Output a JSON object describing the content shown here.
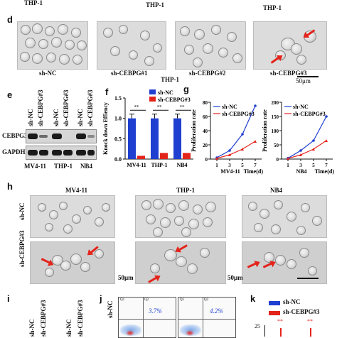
{
  "top_labels": {
    "thp1_left": "THP-1",
    "thp1_center": "THP-1",
    "thp1_right": "THP-1"
  },
  "panel_d": {
    "letter": "d",
    "captions": [
      "sh-NC",
      "sh-CEBPG#1",
      "sh-CEBPG#2",
      "sh-CEBPG#3"
    ],
    "group_label": "THP-1",
    "scale": "50μm"
  },
  "panel_e": {
    "letter": "e",
    "lane_labels": [
      "sh-NC",
      "sh-CEBPG#3",
      "sh-NC",
      "sh-CEBPG#3",
      "sh-NC",
      "sh-CEBPG#3"
    ],
    "row_labels": [
      "CEBPG3",
      "GAPDH"
    ],
    "cell_lines": [
      "MV4-11",
      "THP-1",
      "NB4"
    ]
  },
  "panel_f": {
    "letter": "f"
  },
  "panel_g": {
    "letter": "g"
  },
  "panel_h": {
    "letter": "h",
    "col_titles": [
      "MV4-11",
      "THP-1",
      "NB4"
    ],
    "row_labels": [
      "sh-NC",
      "sh-CEBPG#3"
    ],
    "scale": "50μm"
  },
  "panel_i": {
    "letter": "i",
    "labels": [
      "sh-NC",
      "sh-CEBPG#3"
    ]
  },
  "panel_j": {
    "letter": "j",
    "row_label": "sh-NC",
    "q_labels": [
      "Q1",
      "Q2"
    ],
    "pct1": "3.7%",
    "pct2": "4.2%"
  },
  "panel_k": {
    "letter": "k",
    "legend": [
      "sh-NC",
      "sh-CEBPG#3"
    ],
    "y_tick": "25",
    "sig": "**",
    "colors": {
      "nc": "#1f3fd1",
      "kd": "#e3241b"
    }
  },
  "chart_data": [
    {
      "type": "bar",
      "title": "",
      "ylabel": "Knock down Effiency",
      "xlabel": "",
      "categories": [
        "MV4-11",
        "THP-1",
        "NB4"
      ],
      "ylim": [
        0,
        1.5
      ],
      "yticks": [
        "0.0",
        "0.5",
        "1.0",
        "1.5"
      ],
      "series": [
        {
          "name": "sh-NC",
          "color": "#1f3fd1",
          "values": [
            1.0,
            1.0,
            1.0
          ]
        },
        {
          "name": "sh-CEBPG#3",
          "color": "#e3241b",
          "values": [
            0.08,
            0.15,
            0.15
          ]
        }
      ],
      "significance": "**",
      "legend": "top-right"
    },
    {
      "type": "line",
      "ylabel": "Proliferation rate",
      "xlabel": "Time(d)",
      "cell_line": "MV4-11",
      "x": [
        1,
        3,
        5,
        7
      ],
      "xlim": [
        0,
        8
      ],
      "ylim": [
        0,
        80
      ],
      "yticks": [
        "0",
        "20",
        "40",
        "60",
        "80"
      ],
      "series": [
        {
          "name": "sh-NC",
          "color": "#1f3fd1",
          "values": [
            2,
            12,
            35,
            75
          ]
        },
        {
          "name": "sh-CEBPG#3",
          "color": "#e3241b",
          "values": [
            1,
            6,
            14,
            25
          ]
        }
      ],
      "legend": "top-left"
    },
    {
      "type": "line",
      "ylabel": "Proliferation rate",
      "xlabel": "Time(d)",
      "cell_line": "NB4",
      "x": [
        1,
        3,
        5,
        7
      ],
      "xlim": [
        0,
        8
      ],
      "ylim": [
        0,
        200
      ],
      "yticks": [
        "0",
        "50",
        "100",
        "150",
        "200"
      ],
      "series": [
        {
          "name": "sh-NC",
          "color": "#1f3fd1",
          "values": [
            3,
            30,
            65,
            150
          ]
        },
        {
          "name": "sh-CEBPG#3",
          "color": "#e3241b",
          "values": [
            2,
            15,
            35,
            65
          ]
        }
      ],
      "significance": "***",
      "legend": "top-left"
    }
  ]
}
